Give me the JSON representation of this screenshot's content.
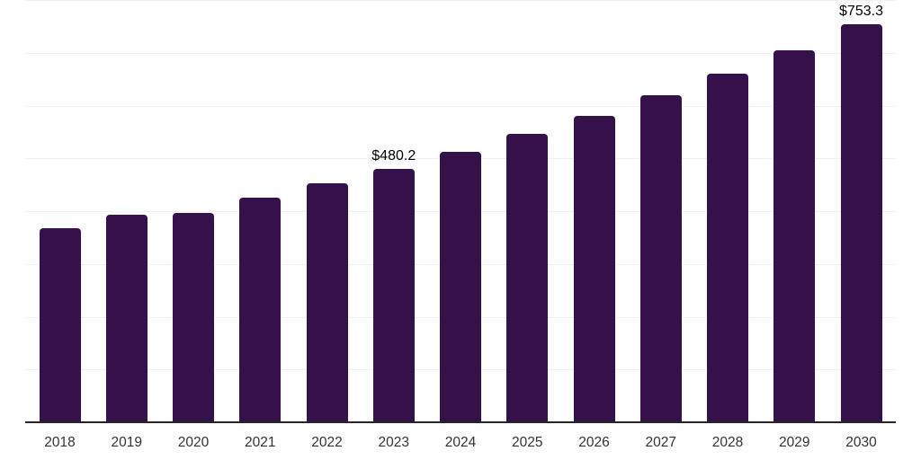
{
  "chart_data": {
    "type": "bar",
    "title": "",
    "xlabel": "",
    "ylabel": "",
    "categories": [
      "2018",
      "2019",
      "2020",
      "2021",
      "2022",
      "2023",
      "2024",
      "2025",
      "2026",
      "2027",
      "2028",
      "2029",
      "2030"
    ],
    "values": [
      368,
      394,
      396,
      426,
      452,
      480.2,
      513,
      547,
      581,
      619,
      661,
      705,
      753.3
    ],
    "data_labels": [
      {
        "category": "2023",
        "text": "$480.2"
      },
      {
        "category": "2030",
        "text": "$753.3"
      }
    ],
    "ylim": [
      0,
      800
    ],
    "gridline_interval": 100,
    "grid": true,
    "legend": false,
    "colors": {
      "bar": "#341249",
      "gridline": "#f0f0f0",
      "axis_line": "#262626",
      "value_label_text": "#000000",
      "tick_label_text": "#333333",
      "background": "#ffffff"
    }
  }
}
